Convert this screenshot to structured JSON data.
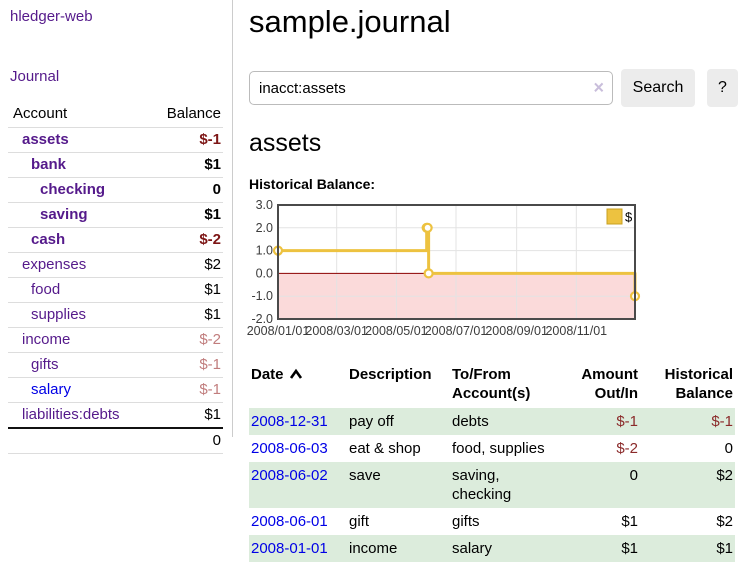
{
  "sidebar": {
    "app_title": "hledger-web",
    "journal_label": "Journal",
    "accounts_table": {
      "headers": {
        "account": "Account",
        "balance": "Balance"
      },
      "rows": [
        {
          "name": "assets",
          "indent": 1,
          "bold": true,
          "balance": "$-1",
          "balance_style": "neg-dark"
        },
        {
          "name": "bank",
          "indent": 2,
          "bold": true,
          "balance": "$1",
          "balance_style": ""
        },
        {
          "name": "checking",
          "indent": 3,
          "bold": true,
          "balance": "0",
          "balance_style": ""
        },
        {
          "name": "saving",
          "indent": 3,
          "bold": true,
          "balance": "$1",
          "balance_style": ""
        },
        {
          "name": "cash",
          "indent": 2,
          "bold": true,
          "balance": "$-2",
          "balance_style": "neg-dark"
        },
        {
          "name": "expenses",
          "indent": 1,
          "bold": false,
          "balance": "$2",
          "balance_style": ""
        },
        {
          "name": "food",
          "indent": 2,
          "bold": false,
          "balance": "$1",
          "balance_style": ""
        },
        {
          "name": "supplies",
          "indent": 2,
          "bold": false,
          "balance": "$1",
          "balance_style": ""
        },
        {
          "name": "income",
          "indent": 1,
          "bold": false,
          "balance": "$-2",
          "balance_style": "neg-light"
        },
        {
          "name": "gifts",
          "indent": 2,
          "bold": false,
          "balance": "$-1",
          "balance_style": "neg-light"
        },
        {
          "name": "salary",
          "indent": 2,
          "bold": false,
          "unvisited": true,
          "balance": "$-1",
          "balance_style": "neg-light"
        },
        {
          "name": "liabilities:debts",
          "indent": 1,
          "bold": false,
          "balance": "$1",
          "balance_style": ""
        }
      ],
      "total": "0"
    }
  },
  "header": {
    "title": "sample.journal"
  },
  "search": {
    "value": "inacct:assets",
    "clear_icon": "×",
    "button_label": "Search",
    "help_label": "?"
  },
  "main": {
    "account_heading": "assets",
    "chart_label": "Historical Balance:"
  },
  "chart_data": {
    "type": "line",
    "step": true,
    "title": "Historical Balance:",
    "series": [
      {
        "name": "$",
        "color": "#edc240",
        "points": [
          [
            "2008-01-01",
            1.0
          ],
          [
            "2008-06-01",
            2.0
          ],
          [
            "2008-06-02",
            2.0
          ],
          [
            "2008-06-03",
            0.0
          ],
          [
            "2008-12-31",
            -1.0
          ]
        ]
      }
    ],
    "x_ticks": [
      "2008/01/01",
      "2008/03/01",
      "2008/05/01",
      "2008/07/01",
      "2008/09/01",
      "2008/11/01"
    ],
    "y_ticks": [
      "3.0",
      "2.0",
      "1.0",
      "0.0",
      "-1.0",
      "-2.0"
    ],
    "xlim": [
      "2008-01-01",
      "2008-12-31"
    ],
    "ylim": [
      -2,
      3
    ],
    "legend": {
      "label": "$",
      "position": "top-right"
    },
    "grid": true,
    "colors": {
      "line": "#edc240",
      "marker_fill": "#ffffff",
      "negative_region": "#fbdada",
      "zero_line": "#8b0000",
      "gridline": "#e3e3e3",
      "plot_border": "#4a4a4a",
      "tick_label": "#3c3c3c",
      "legend_swatch_border": "#c8a020"
    }
  },
  "transactions_table": {
    "headers": {
      "date": "Date",
      "description": "Description",
      "tofrom": "To/From Account(s)",
      "amount": "Amount Out/In",
      "balance": "Historical Balance"
    },
    "rows": [
      {
        "date": "2008-12-31",
        "description": "pay off",
        "accounts": "debts",
        "amount": "$-1",
        "amount_neg": true,
        "balance": "$-1",
        "balance_neg": true
      },
      {
        "date": "2008-06-03",
        "description": "eat & shop",
        "accounts": "food, supplies",
        "amount": "$-2",
        "amount_neg": true,
        "balance": "0",
        "balance_neg": false
      },
      {
        "date": "2008-06-02",
        "description": "save",
        "accounts": "saving, checking",
        "amount": "0",
        "amount_neg": false,
        "balance": "$2",
        "balance_neg": false
      },
      {
        "date": "2008-06-01",
        "description": "gift",
        "accounts": "gifts",
        "amount": "$1",
        "amount_neg": false,
        "balance": "$2",
        "balance_neg": false
      },
      {
        "date": "2008-01-01",
        "description": "income",
        "accounts": "salary",
        "amount": "$1",
        "amount_neg": false,
        "balance": "$1",
        "balance_neg": false
      }
    ]
  },
  "colors": {
    "link_visited": "#551a8b",
    "link": "#0000e6",
    "negative_dark": "#7d1616",
    "negative_light": "#c17d7d",
    "negative_table": "#8b2a2a",
    "row_stripe": "#dcecdc",
    "button_bg": "#ececec"
  }
}
